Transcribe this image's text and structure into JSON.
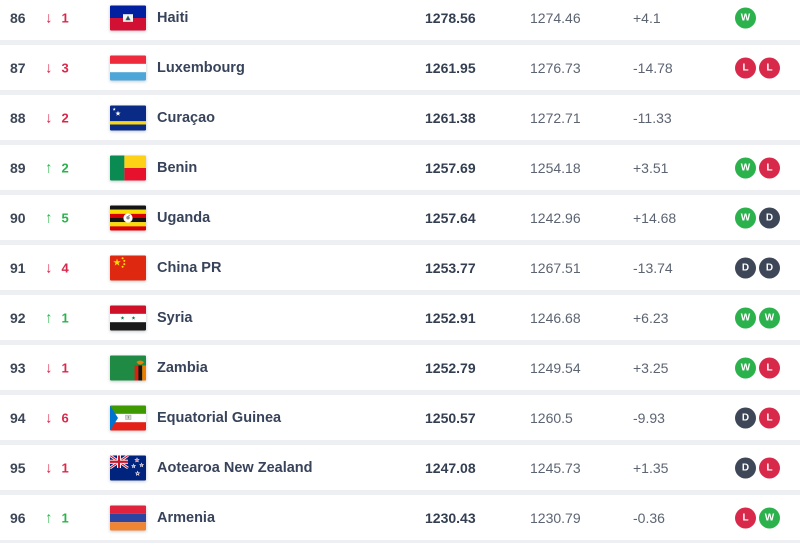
{
  "colors": {
    "win_green": "#2bb24c",
    "loss_red": "#d8294b",
    "draw_dark": "#3e4757",
    "row_background": "#ffffff",
    "page_background": "#edeff3"
  },
  "table": {
    "rows": [
      {
        "rank": "86",
        "movement": {
          "dir": "down",
          "amount": "1"
        },
        "flag": "haiti",
        "team": "Haiti",
        "points": "1278.56",
        "prev_points": "1274.46",
        "change": "+4.1",
        "form": [
          "W"
        ]
      },
      {
        "rank": "87",
        "movement": {
          "dir": "down",
          "amount": "3"
        },
        "flag": "luxembourg",
        "team": "Luxembourg",
        "points": "1261.95",
        "prev_points": "1276.73",
        "change": "-14.78",
        "form": [
          "L",
          "L"
        ]
      },
      {
        "rank": "88",
        "movement": {
          "dir": "down",
          "amount": "2"
        },
        "flag": "curacao",
        "team": "Curaçao",
        "points": "1261.38",
        "prev_points": "1272.71",
        "change": "-11.33",
        "form": []
      },
      {
        "rank": "89",
        "movement": {
          "dir": "up",
          "amount": "2"
        },
        "flag": "benin",
        "team": "Benin",
        "points": "1257.69",
        "prev_points": "1254.18",
        "change": "+3.51",
        "form": [
          "W",
          "L"
        ]
      },
      {
        "rank": "90",
        "movement": {
          "dir": "up",
          "amount": "5"
        },
        "flag": "uganda",
        "team": "Uganda",
        "points": "1257.64",
        "prev_points": "1242.96",
        "change": "+14.68",
        "form": [
          "W",
          "D"
        ]
      },
      {
        "rank": "91",
        "movement": {
          "dir": "down",
          "amount": "4"
        },
        "flag": "china",
        "team": "China PR",
        "points": "1253.77",
        "prev_points": "1267.51",
        "change": "-13.74",
        "form": [
          "D",
          "D"
        ]
      },
      {
        "rank": "92",
        "movement": {
          "dir": "up",
          "amount": "1"
        },
        "flag": "syria",
        "team": "Syria",
        "points": "1252.91",
        "prev_points": "1246.68",
        "change": "+6.23",
        "form": [
          "W",
          "W"
        ]
      },
      {
        "rank": "93",
        "movement": {
          "dir": "down",
          "amount": "1"
        },
        "flag": "zambia",
        "team": "Zambia",
        "points": "1252.79",
        "prev_points": "1249.54",
        "change": "+3.25",
        "form": [
          "W",
          "L"
        ]
      },
      {
        "rank": "94",
        "movement": {
          "dir": "down",
          "amount": "6"
        },
        "flag": "equatorial-guinea",
        "team": "Equatorial Guinea",
        "points": "1250.57",
        "prev_points": "1260.5",
        "change": "-9.93",
        "form": [
          "D",
          "L"
        ]
      },
      {
        "rank": "95",
        "movement": {
          "dir": "down",
          "amount": "1"
        },
        "flag": "new-zealand",
        "team": "Aotearoa New Zealand",
        "points": "1247.08",
        "prev_points": "1245.73",
        "change": "+1.35",
        "form": [
          "D",
          "L"
        ]
      },
      {
        "rank": "96",
        "movement": {
          "dir": "up",
          "amount": "1"
        },
        "flag": "armenia",
        "team": "Armenia",
        "points": "1230.43",
        "prev_points": "1230.79",
        "change": "-0.36",
        "form": [
          "L",
          "W"
        ]
      }
    ]
  }
}
